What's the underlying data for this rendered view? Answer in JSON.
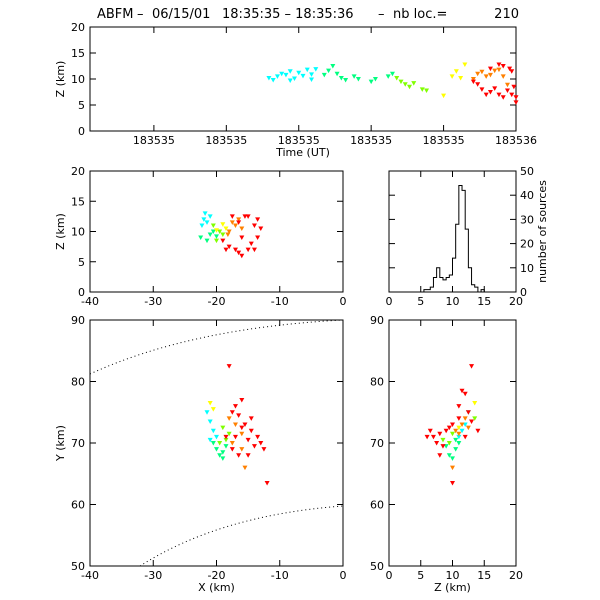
{
  "title": {
    "prefix": "ABFM",
    "date": "06/15/01",
    "time_range": "18:35:35 – 18:35:36",
    "count_label": "nb loc.=",
    "count": "210"
  },
  "colors": {
    "scale": [
      "#00ffff",
      "#00ff80",
      "#80ff00",
      "#ffff00",
      "#ff8000",
      "#ff0000"
    ]
  },
  "chart_data": [
    {
      "id": "time_z",
      "type": "scatter",
      "xlabel": "Time (UT)",
      "ylabel": "Z (km)",
      "xlim": [
        0,
        1
      ],
      "ylim": [
        0,
        20
      ],
      "xtick_labels": [
        "183535",
        "183535",
        "183535",
        "183535",
        "183535",
        "183536"
      ],
      "xtick_positions": [
        0.15,
        0.32,
        0.49,
        0.66,
        0.83,
        1.0
      ],
      "yticks": [
        0,
        5,
        10,
        15,
        20
      ],
      "series": [
        {
          "color": "#00ffff",
          "points": [
            [
              0.42,
              10.2
            ],
            [
              0.43,
              9.8
            ],
            [
              0.44,
              10.5
            ],
            [
              0.45,
              11.0
            ],
            [
              0.46,
              10.8
            ],
            [
              0.47,
              11.5
            ],
            [
              0.48,
              10.1
            ],
            [
              0.49,
              11.2
            ],
            [
              0.5,
              10.6
            ],
            [
              0.51,
              11.8
            ],
            [
              0.52,
              10.9
            ],
            [
              0.53,
              11.9
            ],
            [
              0.52,
              9.9
            ],
            [
              0.47,
              9.7
            ]
          ]
        },
        {
          "color": "#00ff80",
          "points": [
            [
              0.55,
              10.8
            ],
            [
              0.56,
              11.6
            ],
            [
              0.57,
              12.5
            ],
            [
              0.58,
              11.0
            ],
            [
              0.59,
              10.2
            ],
            [
              0.6,
              9.8
            ],
            [
              0.62,
              10.5
            ],
            [
              0.63,
              10.0
            ],
            [
              0.66,
              9.5
            ],
            [
              0.67,
              10.0
            ],
            [
              0.7,
              10.5
            ],
            [
              0.71,
              11.0
            ]
          ]
        },
        {
          "color": "#80ff00",
          "points": [
            [
              0.72,
              10.2
            ],
            [
              0.73,
              9.5
            ],
            [
              0.74,
              9.0
            ],
            [
              0.75,
              8.5
            ],
            [
              0.76,
              9.2
            ],
            [
              0.78,
              8.0
            ],
            [
              0.79,
              7.8
            ]
          ]
        },
        {
          "color": "#ffff00",
          "points": [
            [
              0.83,
              6.8
            ],
            [
              0.85,
              10.5
            ],
            [
              0.86,
              11.5
            ],
            [
              0.87,
              10.2
            ],
            [
              0.88,
              12.8
            ]
          ]
        },
        {
          "color": "#ff8000",
          "points": [
            [
              0.9,
              10.0
            ],
            [
              0.91,
              11.0
            ],
            [
              0.92,
              11.4
            ],
            [
              0.93,
              10.5
            ],
            [
              0.94,
              10.8
            ],
            [
              0.95,
              11.6
            ],
            [
              0.96,
              11.8
            ],
            [
              0.97,
              10.5
            ],
            [
              0.98,
              8.9
            ]
          ]
        },
        {
          "color": "#ff0000",
          "points": [
            [
              0.9,
              9.5
            ],
            [
              0.91,
              9.0
            ],
            [
              0.92,
              8.0
            ],
            [
              0.93,
              7.0
            ],
            [
              0.94,
              7.5
            ],
            [
              0.95,
              8.2
            ],
            [
              0.96,
              7.0
            ],
            [
              0.97,
              6.5
            ],
            [
              0.98,
              7.8
            ],
            [
              0.99,
              7.0
            ],
            [
              0.995,
              8.5
            ],
            [
              1.0,
              6.5
            ],
            [
              0.985,
              12.0
            ],
            [
              0.99,
              11.5
            ],
            [
              0.97,
              12.5
            ],
            [
              0.96,
              12.8
            ],
            [
              1.0,
              5.5
            ],
            [
              0.94,
              12.0
            ]
          ]
        }
      ]
    },
    {
      "id": "x_z",
      "type": "scatter",
      "xlabel": "",
      "ylabel": "Z (km)",
      "xlim": [
        -40,
        0
      ],
      "ylim": [
        0,
        20
      ],
      "xticks": [
        -40,
        -30,
        -20,
        -10,
        0
      ],
      "yticks": [
        0,
        5,
        10,
        15,
        20
      ],
      "series": [
        {
          "color": "#00ffff",
          "points": [
            [
              -21.8,
              13.0
            ],
            [
              -22.0,
              12.0
            ],
            [
              -21.5,
              11.5
            ],
            [
              -21.0,
              12.5
            ],
            [
              -22.3,
              11.0
            ]
          ]
        },
        {
          "color": "#00ff80",
          "points": [
            [
              -21.0,
              9.5
            ],
            [
              -21.5,
              8.5
            ],
            [
              -20.5,
              10.0
            ],
            [
              -22.5,
              9.0
            ],
            [
              -20.0,
              9.2
            ]
          ]
        },
        {
          "color": "#80ff00",
          "points": [
            [
              -20.0,
              8.5
            ],
            [
              -19.5,
              10.0
            ],
            [
              -20.5,
              11.0
            ],
            [
              -19.0,
              9.5
            ]
          ]
        },
        {
          "color": "#ffff00",
          "points": [
            [
              -18.5,
              10.5
            ],
            [
              -19.0,
              11.2
            ],
            [
              -20.0,
              10.2
            ]
          ]
        },
        {
          "color": "#ff8000",
          "points": [
            [
              -17.0,
              11.0
            ],
            [
              -16.0,
              10.5
            ],
            [
              -18.0,
              10.0
            ],
            [
              -17.5,
              11.5
            ],
            [
              -16.5,
              12.0
            ],
            [
              -18.2,
              9.5
            ]
          ]
        },
        {
          "color": "#ff0000",
          "points": [
            [
              -15.0,
              12.5
            ],
            [
              -14.0,
              11.0
            ],
            [
              -13.5,
              12.0
            ],
            [
              -16.0,
              9.0
            ],
            [
              -18.0,
              7.5
            ],
            [
              -17.0,
              7.0
            ],
            [
              -16.5,
              6.5
            ],
            [
              -15.0,
              7.0
            ],
            [
              -14.5,
              8.0
            ],
            [
              -13.0,
              10.5
            ],
            [
              -13.5,
              9.0
            ],
            [
              -16.5,
              11.5
            ],
            [
              -19.0,
              8.5
            ],
            [
              -17.5,
              12.5
            ],
            [
              -15.5,
              12.5
            ],
            [
              -18.5,
              7.0
            ],
            [
              -16.0,
              6.0
            ],
            [
              -14.0,
              7.0
            ]
          ]
        }
      ]
    },
    {
      "id": "histogram",
      "type": "bar",
      "ylabel": "number of sources",
      "xlim": [
        0,
        20
      ],
      "ylim": [
        0,
        50
      ],
      "xticks": [
        0,
        5,
        10,
        15,
        20
      ],
      "yticks": [
        0,
        10,
        20,
        30,
        40,
        50
      ],
      "bin_width": 0.5,
      "bin_start": 5.5,
      "values": [
        1,
        1,
        2,
        6,
        10,
        6,
        5,
        6,
        7,
        14,
        28,
        44,
        42,
        26,
        10,
        3,
        2,
        0,
        1
      ]
    },
    {
      "id": "x_y",
      "type": "scatter",
      "xlabel": "X (km)",
      "ylabel": "Y (km)",
      "xlim": [
        -40,
        0
      ],
      "ylim": [
        50,
        90
      ],
      "xticks": [
        -40,
        -30,
        -20,
        -10,
        0
      ],
      "yticks": [
        50,
        60,
        70,
        80,
        90
      ],
      "series": [
        {
          "color": "#00ffff",
          "points": [
            [
              -21.5,
              75.0
            ],
            [
              -21.0,
              73.5
            ],
            [
              -20.5,
              72.0
            ],
            [
              -21.0,
              70.5
            ],
            [
              -20.0,
              71.0
            ]
          ]
        },
        {
          "color": "#00ff80",
          "points": [
            [
              -20.0,
              69.0
            ],
            [
              -19.5,
              68.0
            ],
            [
              -19.0,
              67.5
            ],
            [
              -20.5,
              70.0
            ],
            [
              -19.0,
              68.5
            ],
            [
              -18.5,
              69.5
            ]
          ]
        },
        {
          "color": "#80ff00",
          "points": [
            [
              -19.5,
              70.0
            ],
            [
              -18.5,
              70.5
            ],
            [
              -19.0,
              72.5
            ],
            [
              -18.0,
              71.5
            ]
          ]
        },
        {
          "color": "#ffff00",
          "points": [
            [
              -21.0,
              76.5
            ],
            [
              -20.5,
              75.5
            ]
          ]
        },
        {
          "color": "#ff8000",
          "points": [
            [
              -17.0,
              73.0
            ],
            [
              -16.0,
              71.5
            ],
            [
              -17.5,
              70.0
            ],
            [
              -16.0,
              69.0
            ],
            [
              -15.5,
              66.0
            ],
            [
              -18.0,
              74.0
            ]
          ]
        },
        {
          "color": "#ff0000",
          "points": [
            [
              -18.0,
              82.5
            ],
            [
              -17.0,
              76.0
            ],
            [
              -16.5,
              74.5
            ],
            [
              -15.5,
              73.0
            ],
            [
              -14.5,
              72.0
            ],
            [
              -16.0,
              72.5
            ],
            [
              -17.0,
              71.0
            ],
            [
              -15.0,
              70.5
            ],
            [
              -14.0,
              69.5
            ],
            [
              -13.5,
              71.0
            ],
            [
              -12.5,
              69.0
            ],
            [
              -16.5,
              68.0
            ],
            [
              -15.0,
              68.0
            ],
            [
              -17.5,
              75.0
            ],
            [
              -12.0,
              63.5
            ],
            [
              -18.5,
              71.0
            ],
            [
              -14.5,
              74.0
            ],
            [
              -16.0,
              77.0
            ],
            [
              -17.5,
              69.0
            ],
            [
              -13.0,
              70.0
            ]
          ]
        }
      ]
    },
    {
      "id": "z_y",
      "type": "scatter",
      "xlabel": "Z (km)",
      "ylabel": "",
      "xlim": [
        0,
        20
      ],
      "ylim": [
        50,
        90
      ],
      "xticks": [
        0,
        5,
        10,
        15,
        20
      ],
      "yticks": [
        50,
        60,
        70,
        80,
        90
      ],
      "series": [
        {
          "color": "#00ffff",
          "points": [
            [
              12.5,
              75.0
            ],
            [
              12.0,
              73.0
            ],
            [
              11.5,
              72.0
            ],
            [
              11.0,
              71.0
            ]
          ]
        },
        {
          "color": "#00ff80",
          "points": [
            [
              10.5,
              69.0
            ],
            [
              9.5,
              68.0
            ],
            [
              10.0,
              67.5
            ],
            [
              11.0,
              70.0
            ],
            [
              9.0,
              69.5
            ],
            [
              10.5,
              70.5
            ]
          ]
        },
        {
          "color": "#80ff00",
          "points": [
            [
              9.5,
              70.0
            ],
            [
              10.0,
              71.5
            ],
            [
              8.5,
              70.5
            ],
            [
              13.5,
              74.0
            ]
          ]
        },
        {
          "color": "#ffff00",
          "points": [
            [
              13.5,
              76.5
            ],
            [
              11.0,
              72.5
            ]
          ]
        },
        {
          "color": "#ff8000",
          "points": [
            [
              11.5,
              73.0
            ],
            [
              12.0,
              74.0
            ],
            [
              11.0,
              71.5
            ],
            [
              10.5,
              72.0
            ],
            [
              12.5,
              72.5
            ],
            [
              10.0,
              66.0
            ]
          ]
        },
        {
          "color": "#ff0000",
          "points": [
            [
              13.0,
              82.5
            ],
            [
              12.0,
              78.0
            ],
            [
              11.0,
              76.0
            ],
            [
              12.5,
              75.0
            ],
            [
              11.0,
              74.0
            ],
            [
              10.0,
              73.0
            ],
            [
              9.0,
              72.0
            ],
            [
              8.0,
              71.5
            ],
            [
              7.0,
              71.0
            ],
            [
              6.5,
              72.0
            ],
            [
              7.5,
              70.0
            ],
            [
              8.5,
              69.5
            ],
            [
              9.5,
              72.5
            ],
            [
              12.0,
              71.0
            ],
            [
              13.0,
              73.5
            ],
            [
              10.0,
              63.5
            ],
            [
              11.5,
              78.5
            ],
            [
              14.0,
              72.0
            ],
            [
              8.0,
              68.0
            ],
            [
              6.0,
              71.0
            ]
          ]
        }
      ]
    }
  ]
}
